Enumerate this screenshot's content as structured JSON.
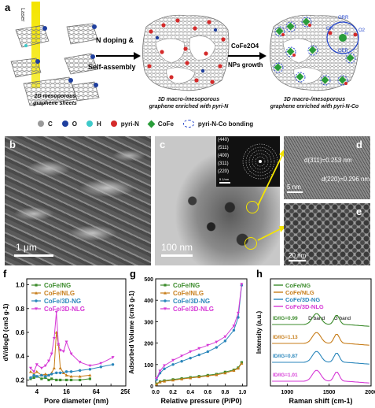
{
  "panel_a": {
    "label": "a",
    "laser_label": "Laser",
    "arrow1_label_line1": "N doping &",
    "arrow1_label_line2": "Self-assembly",
    "arrow2_label_line1": "CoFe2O4",
    "arrow2_label_line2": "NPs growth",
    "caption1_line1": "2D mesoporous",
    "caption1_line2": "graphene sheets",
    "caption2_line1": "3D macro-/mesoporous",
    "caption2_line2": "graphene enriched with pyri-N",
    "caption3_line1": "3D macro-/mesoporous",
    "caption3_line2": "graphene enriched with pyri-N-Co",
    "reaction_labels": [
      "ORR",
      "OH",
      "O2",
      "OER",
      "4e"
    ],
    "legend": [
      {
        "symbol": "C",
        "color": "#9a9a9a"
      },
      {
        "symbol": "O",
        "color": "#1f3f9e"
      },
      {
        "symbol": "H",
        "color": "#3ec9c9"
      },
      {
        "symbol": "pyri-N",
        "color": "#d42a2a"
      },
      {
        "symbol": "CoFe",
        "color": "#2a9d3a"
      },
      {
        "symbol": "pyri-N-Co bonding",
        "color": "#2244cc"
      }
    ]
  },
  "panel_b": {
    "label": "b",
    "scale_bar": "1 μm"
  },
  "panel_c": {
    "label": "c",
    "scale_bar": "100 nm",
    "saed_rings": [
      "(440)",
      "(511)",
      "(400)",
      "(311)",
      "(220)"
    ],
    "saed_scale": "5 1/nm"
  },
  "panel_d": {
    "label": "d",
    "scale_bar": "5 nm",
    "spacing1": "d(311)=0.253 nm",
    "spacing2": "d(220)=0.296 nm"
  },
  "panel_e": {
    "label": "e",
    "scale_bar": "20 nm"
  },
  "panel_f": {
    "label": "f"
  },
  "panel_g": {
    "label": "g"
  },
  "panel_h": {
    "label": "h"
  },
  "chart_data": [
    {
      "type": "line",
      "panel": "f",
      "xlabel": "Pore diameter (nm)",
      "ylabel": "dV/dlogD (cm3 g-1)",
      "x_scale": "log2",
      "xticks": [
        4,
        8,
        16,
        32,
        64,
        128,
        256
      ],
      "xtick_labels": [
        "4",
        "16",
        "64",
        "256"
      ],
      "yticks": [
        0.2,
        0.4,
        0.6,
        0.8,
        1.0
      ],
      "xlim": [
        2.5,
        256
      ],
      "ylim": [
        0.15,
        1.05
      ],
      "series": [
        {
          "name": "CoFe/NG",
          "color": "#3c8b2c",
          "x": [
            3,
            3.5,
            4,
            5,
            6,
            7,
            8,
            10,
            12,
            16,
            20,
            30,
            48
          ],
          "y": [
            0.21,
            0.22,
            0.23,
            0.21,
            0.22,
            0.2,
            0.21,
            0.2,
            0.2,
            0.2,
            0.2,
            0.2,
            0.21
          ]
        },
        {
          "name": "CoFe/NLG",
          "color": "#c77d1a",
          "x": [
            3,
            3.5,
            4,
            5,
            6,
            7,
            8,
            9,
            10,
            11,
            12,
            14,
            16,
            20,
            30,
            48
          ],
          "y": [
            0.27,
            0.25,
            0.27,
            0.24,
            0.25,
            0.24,
            0.26,
            0.3,
            0.6,
            0.5,
            0.3,
            0.26,
            0.24,
            0.23,
            0.23,
            0.24
          ]
        },
        {
          "name": "CoFe/3D-NG",
          "color": "#2a86bb",
          "x": [
            3,
            3.5,
            4,
            5,
            6,
            7,
            8,
            10,
            12,
            16,
            20,
            30,
            48,
            80,
            140
          ],
          "y": [
            0.22,
            0.24,
            0.23,
            0.24,
            0.23,
            0.24,
            0.25,
            0.26,
            0.26,
            0.27,
            0.27,
            0.28,
            0.29,
            0.31,
            0.33
          ]
        },
        {
          "name": "CoFe/3D-NLG",
          "color": "#d63ad6",
          "x": [
            3,
            3.5,
            4,
            5,
            6,
            7,
            8,
            9,
            10,
            11,
            12,
            14,
            16,
            20,
            30,
            48,
            80,
            140
          ],
          "y": [
            0.3,
            0.27,
            0.33,
            0.3,
            0.32,
            0.36,
            0.42,
            0.55,
            0.77,
            0.5,
            0.45,
            0.44,
            0.52,
            0.42,
            0.35,
            0.32,
            0.34,
            0.39
          ]
        }
      ]
    },
    {
      "type": "line",
      "panel": "g",
      "xlabel": "Relative pressure (P/P0)",
      "ylabel": "Adsorbed Volume (cm3 g-1)",
      "xticks": [
        0.0,
        0.2,
        0.4,
        0.6,
        0.8,
        1.0
      ],
      "yticks": [
        0,
        100,
        200,
        300,
        400,
        500
      ],
      "xlim": [
        0,
        1.05
      ],
      "ylim": [
        0,
        500
      ],
      "series": [
        {
          "name": "CoFe/NG",
          "color": "#3c8b2c",
          "x": [
            0.01,
            0.05,
            0.1,
            0.2,
            0.3,
            0.4,
            0.5,
            0.6,
            0.7,
            0.8,
            0.9,
            0.95,
            0.99
          ],
          "y": [
            10,
            20,
            25,
            30,
            35,
            40,
            45,
            50,
            55,
            65,
            75,
            85,
            110
          ]
        },
        {
          "name": "CoFe/NLG",
          "color": "#c77d1a",
          "x": [
            0.01,
            0.05,
            0.1,
            0.2,
            0.3,
            0.4,
            0.5,
            0.6,
            0.7,
            0.8,
            0.9,
            0.95,
            0.99
          ],
          "y": [
            8,
            18,
            22,
            27,
            32,
            37,
            42,
            47,
            52,
            60,
            72,
            82,
            105
          ]
        },
        {
          "name": "CoFe/3D-NG",
          "color": "#2a86bb",
          "x": [
            0.01,
            0.05,
            0.1,
            0.2,
            0.3,
            0.4,
            0.5,
            0.6,
            0.7,
            0.8,
            0.9,
            0.95,
            0.99
          ],
          "y": [
            30,
            60,
            80,
            100,
            115,
            130,
            145,
            160,
            180,
            210,
            260,
            320,
            470
          ]
        },
        {
          "name": "CoFe/3D-NLG",
          "color": "#d63ad6",
          "x": [
            0.01,
            0.05,
            0.1,
            0.2,
            0.3,
            0.4,
            0.5,
            0.6,
            0.7,
            0.8,
            0.9,
            0.95,
            0.99
          ],
          "y": [
            35,
            70,
            95,
            120,
            140,
            160,
            175,
            190,
            205,
            230,
            280,
            340,
            475
          ]
        }
      ]
    },
    {
      "type": "line",
      "panel": "h",
      "xlabel": "Raman shift (cm-1)",
      "ylabel": "Intensity (a.u.)",
      "xticks": [
        1000,
        1500,
        2000
      ],
      "xlim": [
        800,
        2000
      ],
      "band_labels": [
        "D band",
        "G band"
      ],
      "series": [
        {
          "name": "CoFe/NG",
          "color": "#3c8b2c",
          "ratio_label": "ID/IG=0.99"
        },
        {
          "name": "CoFe/NLG",
          "color": "#c77d1a",
          "ratio_label": "ID/IG=1.13"
        },
        {
          "name": "CoFe/3D-NG",
          "color": "#2a86bb",
          "ratio_label": "ID/IG=0.87"
        },
        {
          "name": "CoFe/3D-NLG",
          "color": "#d63ad6",
          "ratio_label": "ID/IG=1.01"
        }
      ]
    }
  ]
}
